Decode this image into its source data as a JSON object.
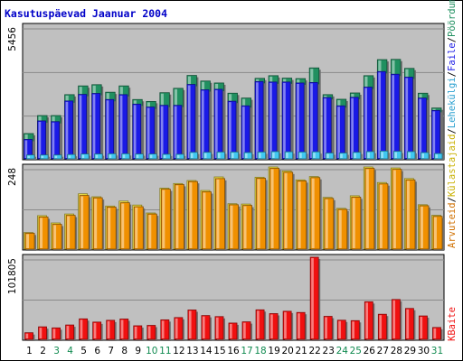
{
  "chart_data": [
    {
      "type": "bar",
      "title": "Kasutuspäevad Jaanuar 2004",
      "categories": [
        "1",
        "2",
        "3",
        "4",
        "5",
        "6",
        "7",
        "8",
        "9",
        "10",
        "11",
        "12",
        "13",
        "14",
        "15",
        "16",
        "17",
        "18",
        "19",
        "20",
        "21",
        "22",
        "23",
        "24",
        "25",
        "26",
        "27",
        "28",
        "29",
        "30",
        "31"
      ],
      "weekend_days": [
        "3",
        "4",
        "10",
        "11",
        "17",
        "18",
        "24",
        "25",
        "31"
      ],
      "ytick": "5456",
      "ylim": [
        0,
        5456
      ],
      "grid": true,
      "series": [
        {
          "name": "Pöördumisi",
          "color": "#209060",
          "values": [
            1040,
            1780,
            1780,
            2640,
            3000,
            3050,
            2740,
            3000,
            2440,
            2360,
            2720,
            2900,
            3430,
            3200,
            3120,
            2700,
            2500,
            3310,
            3420,
            3320,
            3300,
            3740,
            2640,
            2450,
            2710,
            3420,
            4080,
            4090,
            3720,
            2700,
            2090
          ]
        },
        {
          "name": "Faile",
          "color": "#1a1ae6",
          "values": [
            800,
            1560,
            1530,
            2380,
            2650,
            2690,
            2440,
            2640,
            2250,
            2130,
            2200,
            2200,
            3060,
            2840,
            2860,
            2370,
            2180,
            3180,
            3160,
            3160,
            3120,
            3140,
            2520,
            2180,
            2530,
            2950,
            3590,
            3480,
            3360,
            2500,
            1990
          ]
        },
        {
          "name": "Lehekülgi",
          "color": "#40c8f0",
          "values": [
            160,
            160,
            160,
            180,
            200,
            200,
            210,
            210,
            200,
            200,
            190,
            190,
            270,
            270,
            280,
            280,
            260,
            280,
            300,
            290,
            280,
            290,
            240,
            240,
            270,
            300,
            320,
            310,
            300,
            260,
            220
          ]
        }
      ]
    },
    {
      "type": "bar",
      "categories": [
        "1",
        "2",
        "3",
        "4",
        "5",
        "6",
        "7",
        "8",
        "9",
        "10",
        "11",
        "12",
        "13",
        "14",
        "15",
        "16",
        "17",
        "18",
        "19",
        "20",
        "21",
        "22",
        "23",
        "24",
        "25",
        "26",
        "27",
        "28",
        "29",
        "30",
        "31"
      ],
      "ytick": "248",
      "ylim": [
        0,
        248
      ],
      "grid": true,
      "series": [
        {
          "name": "Külastajaid",
          "color": "#f0e040",
          "values": [
            50,
            101,
            79,
            106,
            167,
            158,
            130,
            145,
            133,
            109,
            184,
            198,
            207,
            177,
            218,
            137,
            136,
            217,
            248,
            236,
            209,
            219,
            156,
            123,
            161,
            248,
            201,
            245,
            213,
            134,
            102
          ]
        },
        {
          "name": "Arvuteid",
          "color": "#f09000",
          "values": [
            48,
            97,
            75,
            102,
            162,
            155,
            127,
            140,
            128,
            106,
            181,
            195,
            204,
            173,
            213,
            134,
            132,
            214,
            244,
            232,
            206,
            216,
            153,
            120,
            157,
            244,
            197,
            241,
            209,
            131,
            99
          ]
        }
      ]
    },
    {
      "type": "bar",
      "categories": [
        "1",
        "2",
        "3",
        "4",
        "5",
        "6",
        "7",
        "8",
        "9",
        "10",
        "11",
        "12",
        "13",
        "14",
        "15",
        "16",
        "17",
        "18",
        "19",
        "20",
        "21",
        "22",
        "23",
        "24",
        "25",
        "26",
        "27",
        "28",
        "29",
        "30",
        "31"
      ],
      "ytick": "101805",
      "ylim": [
        0,
        101805
      ],
      "grid": true,
      "series": [
        {
          "name": "KBaite",
          "color": "#f01010",
          "values": [
            8200,
            15500,
            14200,
            17800,
            25400,
            21400,
            23600,
            25200,
            16800,
            17300,
            24200,
            27000,
            36400,
            29500,
            28200,
            20200,
            21700,
            36600,
            31900,
            34800,
            33300,
            101800,
            28500,
            23700,
            23200,
            46600,
            31100,
            49400,
            38300,
            29000,
            14700
          ]
        }
      ]
    }
  ]
}
